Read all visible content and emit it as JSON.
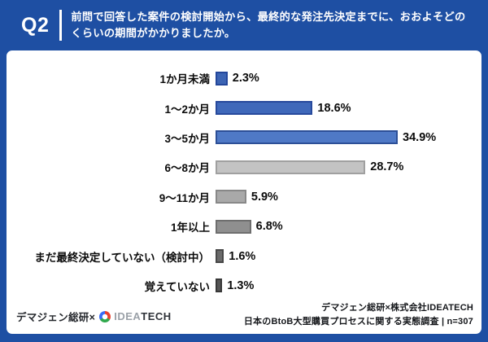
{
  "header": {
    "q_label": "Q2",
    "question_line1": "前問で回答した案件の検討開始から、最終的な発注先決定までに、おおよそどの",
    "question_line2": "くらいの期間がかかりましたか。"
  },
  "chart_data": {
    "type": "bar",
    "orientation": "horizontal",
    "title": "前問で回答した案件の検討開始から、最終的な発注先決定までに、おおよそどのくらいの期間がかかりましたか。",
    "categories": [
      "1か月未満",
      "1〜2か月",
      "3〜5か月",
      "6〜8か月",
      "9〜11か月",
      "1年以上",
      "まだ最終決定していない（検討中）",
      "覚えていない"
    ],
    "values": [
      2.3,
      18.6,
      34.9,
      28.7,
      5.9,
      6.8,
      1.6,
      1.3
    ],
    "value_labels": [
      "2.3%",
      "18.6%",
      "34.9%",
      "28.7%",
      "5.9%",
      "6.8%",
      "1.6%",
      "1.3%"
    ],
    "bar_fill_colors": [
      "#3c64b4",
      "#3f68ba",
      "#4f79c6",
      "#c3c3c3",
      "#a9a9a9",
      "#8f8f8f",
      "#6a6a6a",
      "#565656"
    ],
    "bar_border_colors": [
      "#24479b",
      "#27499c",
      "#2c4f97",
      "#a0a0a0",
      "#888888",
      "#6e6e6e",
      "#484848",
      "#383838"
    ],
    "xlim": [
      0,
      40
    ],
    "grid": false,
    "legend": false,
    "n": 307
  },
  "footer": {
    "left_brand": "デマジェン総研×",
    "logo_idea": "IDEA",
    "logo_tech": "TECH",
    "credit_line1": "デマジェン総研×株式会社IDEATECH",
    "credit_line2": "日本のBtoB大型購買プロセスに関する実態調査 | n=307"
  },
  "colors": {
    "page_background": "#1e4fa3",
    "panel_background": "#ffffff",
    "header_text": "#ffffff",
    "label_text": "#0c0c0c"
  }
}
